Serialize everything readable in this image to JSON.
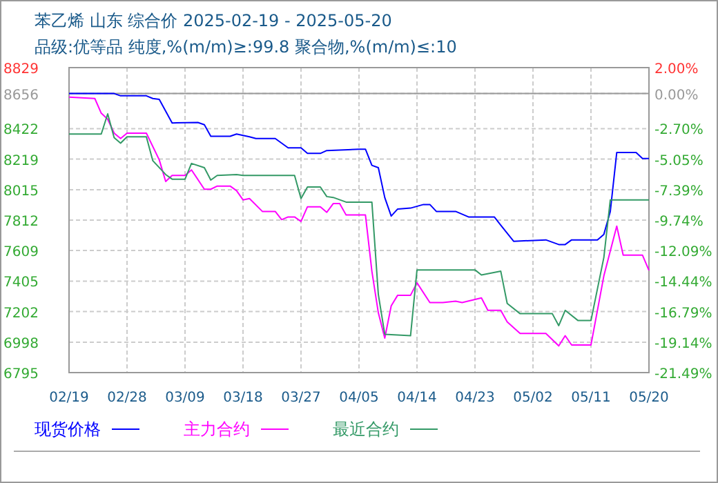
{
  "chart_data": {
    "type": "line",
    "title": "苯乙烯 山东 综合价 2025-02-19 - 2025-05-20",
    "subtitle": "品级:优等品 纯度,%(m/m)≥:99.8 聚合物,%(m/m)≤:10",
    "xlim": [
      "--02-19",
      "--05-20"
    ],
    "xticks": [
      {
        "value": "--02-19",
        "label": "02/19"
      },
      {
        "value": "--02-28",
        "label": "02/28"
      },
      {
        "value": "--03-09",
        "label": "03/09"
      },
      {
        "value": "--03-18",
        "label": "03/18"
      },
      {
        "value": "--03-27",
        "label": "03/27"
      },
      {
        "value": "--04-05",
        "label": "04/05"
      },
      {
        "value": "--04-14",
        "label": "04/14"
      },
      {
        "value": "--04-23",
        "label": "04/23"
      },
      {
        "value": "--05-02",
        "label": "05/02"
      },
      {
        "value": "--05-11",
        "label": "05/11"
      },
      {
        "value": "--05-20",
        "label": "05/20"
      }
    ],
    "ylim": [
      6795,
      8829
    ],
    "yticks": [
      6795,
      6998,
      7202,
      7405,
      7609,
      7812,
      8015,
      8219,
      8422,
      8656,
      8829
    ],
    "y2lim": [
      -21.49,
      2.0
    ],
    "y2ticks": [
      {
        "value": -21.49,
        "label": "-21.49%"
      },
      {
        "value": -19.14,
        "label": "-19.14%"
      },
      {
        "value": -16.79,
        "label": "-16.79%"
      },
      {
        "value": -14.44,
        "label": "-14.44%"
      },
      {
        "value": -12.09,
        "label": "-12.09%"
      },
      {
        "value": -9.74,
        "label": "-9.74%"
      },
      {
        "value": -7.39,
        "label": "-7.39%"
      },
      {
        "value": -5.05,
        "label": "-5.05%"
      },
      {
        "value": -2.7,
        "label": "-2.70%"
      },
      {
        "value": 0,
        "label": "0.00%"
      },
      {
        "value": 2.0,
        "label": "2.00%"
      }
    ],
    "grid": true,
    "legend": "bottom",
    "ref_lines": [
      {
        "axis": "y",
        "value": 8656,
        "color": "#999999"
      }
    ],
    "series": [
      {
        "name": "现货价格",
        "color": "#0000ff",
        "x": [
          "--02-19",
          "--02-26",
          "--02-27",
          "--03-03",
          "--03-04",
          "--03-05",
          "--03-07",
          "--03-11",
          "--03-12",
          "--03-13",
          "--03-16",
          "--03-17",
          "--03-19",
          "--03-20",
          "--03-23",
          "--03-25",
          "--03-27",
          "--03-28",
          "--03-30",
          "--03-31",
          "--04-05",
          "--04-06",
          "--04-07",
          "--04-08",
          "--04-09",
          "--04-10",
          "--04-11",
          "--04-13",
          "--04-15",
          "--04-16",
          "--04-17",
          "--04-20",
          "--04-22",
          "--04-26",
          "--04-27",
          "--04-29",
          "--05-04",
          "--05-06",
          "--05-07",
          "--05-08",
          "--05-12",
          "--05-13",
          "--05-14",
          "--05-15",
          "--05-18",
          "--05-19",
          "--05-20"
        ],
        "values": [
          8656,
          8656,
          8641,
          8641,
          8623,
          8617,
          8460,
          8463,
          8448,
          8371,
          8371,
          8386,
          8368,
          8356,
          8356,
          8294,
          8294,
          8257,
          8257,
          8276,
          8285,
          8285,
          8177,
          8162,
          7962,
          7839,
          7886,
          7892,
          7916,
          7916,
          7870,
          7870,
          7833,
          7833,
          7778,
          7671,
          7680,
          7649,
          7649,
          7680,
          7680,
          7717,
          7870,
          8263,
          8263,
          8223,
          8223
        ]
      },
      {
        "name": "主力合约",
        "color": "#ff00ff",
        "x": [
          "--02-19",
          "--02-23",
          "--02-24",
          "--02-25",
          "--02-26",
          "--02-27",
          "--02-28",
          "--03-03",
          "--03-05",
          "--03-06",
          "--03-07",
          "--03-09",
          "--03-10",
          "--03-12",
          "--03-13",
          "--03-14",
          "--03-16",
          "--03-17",
          "--03-18",
          "--03-19",
          "--03-21",
          "--03-23",
          "--03-24",
          "--03-25",
          "--03-26",
          "--03-27",
          "--03-28",
          "--03-30",
          "--03-31",
          "--04-01",
          "--04-02",
          "--04-03",
          "--04-05",
          "--04-06",
          "--04-07",
          "--04-08",
          "--04-09",
          "--04-10",
          "--04-11",
          "--04-13",
          "--04-14",
          "--04-16",
          "--04-18",
          "--04-20",
          "--04-21",
          "--04-24",
          "--04-25",
          "--04-27",
          "--04-28",
          "--04-30",
          "--05-04",
          "--05-06",
          "--05-07",
          "--05-08",
          "--05-11",
          "--05-13",
          "--05-15",
          "--05-16",
          "--05-19",
          "--05-20"
        ],
        "values": [
          8632,
          8623,
          8525,
          8485,
          8392,
          8356,
          8392,
          8392,
          8214,
          8070,
          8110,
          8110,
          8147,
          8018,
          8018,
          8039,
          8039,
          8008,
          7947,
          7956,
          7870,
          7870,
          7815,
          7833,
          7833,
          7803,
          7901,
          7901,
          7864,
          7922,
          7922,
          7846,
          7846,
          7846,
          7471,
          7194,
          7025,
          7240,
          7311,
          7311,
          7394,
          7262,
          7262,
          7271,
          7262,
          7293,
          7210,
          7210,
          7133,
          7056,
          7056,
          6973,
          7041,
          6979,
          6979,
          7440,
          7772,
          7578,
          7578,
          7477
        ]
      },
      {
        "name": "最近合约",
        "color": "#339966",
        "x": [
          "--02-19",
          "--02-24",
          "--02-25",
          "--02-26",
          "--02-27",
          "--02-28",
          "--03-03",
          "--03-04",
          "--03-06",
          "--03-07",
          "--03-09",
          "--03-10",
          "--03-12",
          "--03-13",
          "--03-14",
          "--03-17",
          "--03-18",
          "--03-26",
          "--03-27",
          "--03-28",
          "--03-30",
          "--03-31",
          "--04-01",
          "--04-03",
          "--04-05",
          "--04-07",
          "--04-08",
          "--04-09",
          "--04-13",
          "--04-14",
          "--04-23",
          "--04-24",
          "--04-27",
          "--04-28",
          "--04-30",
          "--05-05",
          "--05-06",
          "--05-07",
          "--05-09",
          "--05-11",
          "--05-13",
          "--05-14",
          "--05-20"
        ],
        "values": [
          8386,
          8386,
          8521,
          8362,
          8325,
          8368,
          8368,
          8208,
          8116,
          8085,
          8085,
          8190,
          8162,
          8079,
          8110,
          8116,
          8110,
          8110,
          7956,
          8033,
          8033,
          7969,
          7963,
          7932,
          7932,
          7932,
          7317,
          7050,
          7041,
          7480,
          7480,
          7446,
          7471,
          7256,
          7188,
          7188,
          7108,
          7210,
          7142,
          7142,
          7563,
          7947,
          7947
        ]
      }
    ]
  }
}
